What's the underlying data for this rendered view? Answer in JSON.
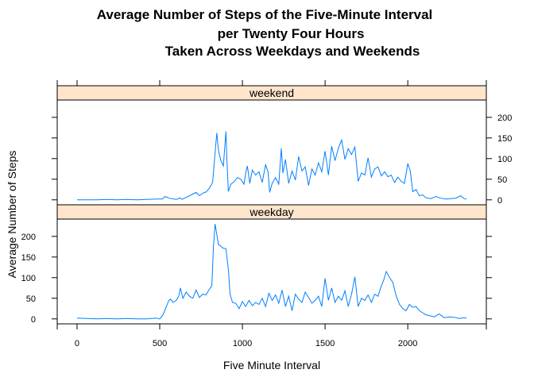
{
  "colors": {
    "line": "#0080ff",
    "strip": "#ffe5cc",
    "frame": "#000000",
    "background": "#ffffff"
  },
  "chart_data": {
    "type": "line",
    "title_lines": [
      "Average Number of Steps of the Five-Minute Interval",
      "per Twenty Four Hours",
      "Taken Across Weekdays and Weekends"
    ],
    "xlabel": "Five Minute Interval",
    "ylabel": "Average Number of Steps",
    "xlim": [
      -120,
      2475
    ],
    "ylim": [
      -12,
      242
    ],
    "x_ticks": [
      0,
      500,
      1000,
      1500,
      2000
    ],
    "y_ticks": [
      0,
      50,
      100,
      150,
      200
    ],
    "grid": false,
    "layout": "two stacked panels sharing x axis; strip label on top of each panel",
    "panels": [
      {
        "name": "weekend",
        "x": [
          0,
          60,
          120,
          180,
          240,
          300,
          360,
          420,
          480,
          510,
          520,
          530,
          545,
          555,
          600,
          610,
          620,
          635,
          650,
          700,
          720,
          740,
          760,
          780,
          800,
          820,
          835,
          845,
          855,
          870,
          885,
          900,
          905,
          915,
          930,
          950,
          970,
          990,
          1010,
          1020,
          1030,
          1045,
          1060,
          1080,
          1100,
          1120,
          1140,
          1155,
          1165,
          1180,
          1200,
          1220,
          1235,
          1245,
          1260,
          1280,
          1300,
          1320,
          1340,
          1360,
          1380,
          1400,
          1420,
          1440,
          1460,
          1480,
          1500,
          1520,
          1540,
          1560,
          1580,
          1600,
          1620,
          1640,
          1660,
          1680,
          1700,
          1720,
          1740,
          1760,
          1780,
          1800,
          1820,
          1840,
          1860,
          1880,
          1900,
          1920,
          1940,
          1960,
          1980,
          2000,
          2015,
          2030,
          2050,
          2070,
          2090,
          2110,
          2140,
          2170,
          2200,
          2230,
          2260,
          2290,
          2320,
          2340,
          2355
        ],
        "values": [
          0,
          0,
          0,
          1,
          0,
          1,
          0,
          1,
          2,
          2,
          3,
          8,
          6,
          4,
          1,
          2,
          5,
          1,
          4,
          14,
          18,
          10,
          16,
          19,
          28,
          42,
          115,
          162,
          120,
          95,
          82,
          166,
          108,
          20,
          38,
          44,
          54,
          50,
          38,
          65,
          82,
          40,
          72,
          60,
          68,
          42,
          85,
          68,
          18,
          40,
          54,
          38,
          125,
          65,
          98,
          40,
          70,
          48,
          105,
          70,
          80,
          35,
          75,
          60,
          90,
          68,
          118,
          60,
          130,
          95,
          125,
          145,
          98,
          124,
          110,
          128,
          45,
          65,
          60,
          102,
          55,
          75,
          80,
          58,
          68,
          56,
          60,
          42,
          55,
          45,
          40,
          88,
          70,
          20,
          25,
          10,
          12,
          5,
          3,
          8,
          4,
          2,
          3,
          4,
          10,
          3,
          2
        ]
      },
      {
        "name": "weekday",
        "x": [
          0,
          60,
          120,
          180,
          240,
          300,
          360,
          420,
          480,
          500,
          520,
          540,
          555,
          565,
          580,
          600,
          615,
          625,
          640,
          660,
          680,
          700,
          720,
          740,
          760,
          780,
          800,
          815,
          825,
          835,
          845,
          855,
          865,
          880,
          900,
          915,
          925,
          940,
          960,
          980,
          1000,
          1020,
          1040,
          1060,
          1080,
          1100,
          1120,
          1140,
          1160,
          1180,
          1200,
          1220,
          1240,
          1260,
          1280,
          1300,
          1320,
          1340,
          1360,
          1380,
          1400,
          1420,
          1440,
          1460,
          1480,
          1500,
          1520,
          1540,
          1560,
          1580,
          1600,
          1620,
          1640,
          1660,
          1680,
          1700,
          1720,
          1740,
          1760,
          1780,
          1800,
          1820,
          1840,
          1855,
          1870,
          1890,
          1910,
          1930,
          1950,
          1970,
          1990,
          2010,
          2030,
          2050,
          2070,
          2090,
          2110,
          2130,
          2160,
          2190,
          2220,
          2250,
          2280,
          2310,
          2340,
          2355
        ],
        "values": [
          2,
          1,
          0,
          1,
          0,
          1,
          0,
          0,
          2,
          0,
          10,
          30,
          45,
          48,
          40,
          45,
          55,
          75,
          50,
          65,
          55,
          50,
          70,
          52,
          60,
          58,
          72,
          80,
          175,
          230,
          205,
          180,
          178,
          172,
          170,
          120,
          60,
          40,
          38,
          25,
          42,
          30,
          45,
          32,
          40,
          35,
          50,
          30,
          62,
          45,
          58,
          38,
          70,
          30,
          55,
          20,
          60,
          48,
          40,
          65,
          52,
          38,
          45,
          55,
          30,
          98,
          45,
          75,
          40,
          55,
          45,
          68,
          30,
          60,
          102,
          30,
          50,
          45,
          58,
          40,
          60,
          55,
          80,
          95,
          115,
          100,
          88,
          55,
          35,
          25,
          20,
          35,
          28,
          30,
          20,
          15,
          10,
          8,
          5,
          12,
          3,
          5,
          4,
          1,
          3,
          2
        ]
      }
    ]
  }
}
